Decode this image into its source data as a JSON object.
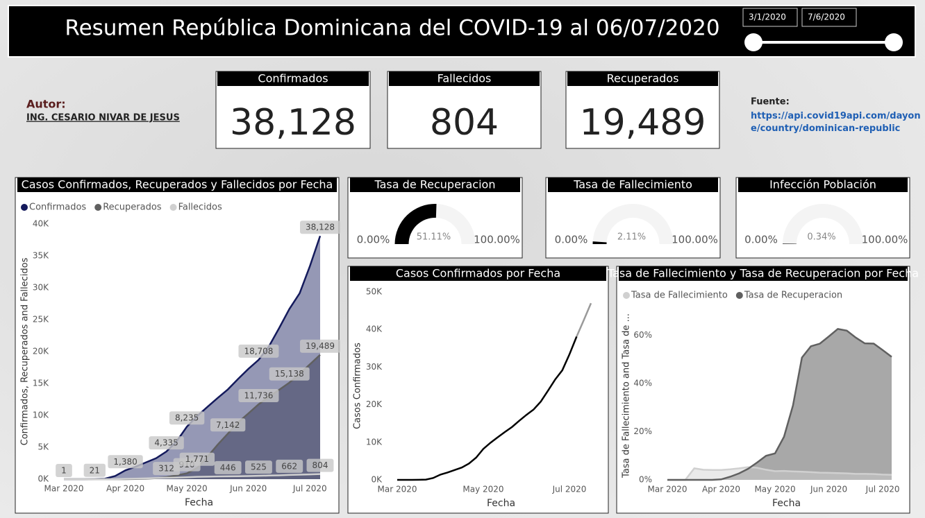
{
  "header": {
    "title": "Resumen República Dominicana del COVID-19 al 06/07/2020"
  },
  "slicer": {
    "start": "3/1/2020",
    "end": "7/6/2020"
  },
  "author": {
    "label": "Autor:",
    "name": "ING. CESARIO NIVAR DE JESUS"
  },
  "source": {
    "label": "Fuente:",
    "url": "https://api.covid19api.com/dayone/country/dominican-republic"
  },
  "cards": [
    {
      "title": "Confirmados",
      "value": "38,128"
    },
    {
      "title": "Fallecidos",
      "value": "804"
    },
    {
      "title": "Recuperados",
      "value": "19,489"
    }
  ],
  "chart_data": [
    {
      "type": "line",
      "title": "Casos Confirmados, Recuperados y Fallecidos por Fecha",
      "x_label": "Fecha",
      "y_label": "Confirmados, Recuperados and Fallecidos",
      "area": true,
      "categories": [
        "Mar 2020",
        null,
        null,
        null,
        null,
        null,
        "Apr 2020",
        null,
        null,
        null,
        null,
        null,
        "May 2020",
        null,
        null,
        null,
        null,
        null,
        "Jun 2020",
        null,
        null,
        null,
        null,
        null,
        "Jul 2020",
        null
      ],
      "ylim": [
        0,
        40000
      ],
      "yticks": [
        {
          "value": 0,
          "label": "0K"
        },
        {
          "value": 5000,
          "label": "5K"
        },
        {
          "value": 10000,
          "label": "10K"
        },
        {
          "value": 15000,
          "label": "15K"
        },
        {
          "value": 20000,
          "label": "20K"
        },
        {
          "value": 25000,
          "label": "25K"
        },
        {
          "value": 30000,
          "label": "30K"
        },
        {
          "value": 35000,
          "label": "35K"
        },
        {
          "value": 40000,
          "label": "40K"
        }
      ],
      "series": [
        {
          "name": "Confirmados",
          "color": "#141a5c",
          "values": [
            1,
            1,
            5,
            21,
            72,
            488,
            1380,
            1956,
            2620,
            3286,
            4335,
            5926,
            8235,
            9882,
            11320,
            12725,
            14072,
            15723,
            17285,
            18708,
            20808,
            23686,
            26677,
            29141,
            33387,
            38128
          ],
          "value_labels": [
            "1",
            null,
            null,
            "21",
            null,
            null,
            "1,380",
            null,
            null,
            null,
            "4,335",
            null,
            "8,235",
            null,
            null,
            null,
            null,
            null,
            null,
            "18,708",
            null,
            null,
            null,
            null,
            null,
            "38,128"
          ]
        },
        {
          "name": "Recuperados",
          "color": "#606060",
          "values": [
            0,
            0,
            0,
            0,
            0,
            0,
            3,
            25,
            70,
            150,
            312,
            600,
            910,
            1771,
            3500,
            5400,
            7142,
            8900,
            10300,
            11736,
            12900,
            14000,
            15138,
            16500,
            18000,
            19489
          ],
          "value_labels": [
            null,
            null,
            null,
            null,
            null,
            null,
            null,
            null,
            null,
            null,
            "312",
            null,
            "910",
            "1,771",
            null,
            null,
            "7,142",
            null,
            null,
            "11,736",
            null,
            null,
            "15,138",
            null,
            null,
            "19,489"
          ]
        },
        {
          "name": "Fallecidos",
          "color": "#d0d0d0",
          "values": [
            0,
            0,
            0,
            1,
            3,
            20,
            57,
            86,
            126,
            173,
            217,
            250,
            300,
            370,
            400,
            428,
            446,
            468,
            494,
            525,
            565,
            603,
            662,
            700,
            750,
            804
          ],
          "value_labels": [
            null,
            null,
            null,
            null,
            null,
            null,
            null,
            null,
            null,
            null,
            null,
            null,
            null,
            null,
            null,
            null,
            "446",
            null,
            null,
            "525",
            null,
            null,
            "662",
            null,
            null,
            "804"
          ]
        }
      ]
    },
    {
      "type": "gauge",
      "title": "Tasa de Recuperacion",
      "min": {
        "value": 0,
        "label": "0.00%"
      },
      "max": {
        "value": 100,
        "label": "100.00%"
      },
      "value": 51.11,
      "value_label": "51.11%"
    },
    {
      "type": "gauge",
      "title": "Tasa de Fallecimiento",
      "min": {
        "value": 0,
        "label": "0.00%"
      },
      "max": {
        "value": 100,
        "label": "100.00%"
      },
      "value": 2.11,
      "value_label": "2.11%"
    },
    {
      "type": "gauge",
      "title": "Infección Población",
      "min": {
        "value": 0,
        "label": "0.00%"
      },
      "max": {
        "value": 100,
        "label": "100.00%"
      },
      "value": 0.34,
      "value_label": "0.34%"
    },
    {
      "type": "line",
      "title": "Casos Confirmados por Fecha",
      "x_label": "Fecha",
      "y_label": "Casos Confirmados",
      "area": false,
      "categories": [
        "Mar 2020",
        null,
        null,
        null,
        null,
        null,
        null,
        null,
        null,
        null,
        null,
        null,
        "May 2020",
        null,
        null,
        null,
        null,
        null,
        null,
        null,
        null,
        null,
        null,
        null,
        "Jul 2020",
        null,
        null,
        null
      ],
      "ylim": [
        0,
        50000
      ],
      "yticks": [
        {
          "value": 0,
          "label": "0K"
        },
        {
          "value": 10000,
          "label": "10K"
        },
        {
          "value": 20000,
          "label": "20K"
        },
        {
          "value": 30000,
          "label": "30K"
        },
        {
          "value": 40000,
          "label": "40K"
        },
        {
          "value": 50000,
          "label": "50K"
        }
      ],
      "series": [
        {
          "color": "#000000",
          "values": [
            1,
            1,
            5,
            21,
            72,
            488,
            1380,
            1956,
            2620,
            3286,
            4335,
            5926,
            8235,
            9882,
            11320,
            12725,
            14072,
            15723,
            17285,
            18708,
            20808,
            23686,
            26677,
            29141,
            33387,
            38128,
            null,
            null
          ]
        },
        {
          "color": "#9a9a9a",
          "values": [
            null,
            null,
            null,
            null,
            null,
            null,
            null,
            null,
            null,
            null,
            null,
            null,
            null,
            null,
            null,
            null,
            null,
            null,
            null,
            null,
            null,
            null,
            null,
            null,
            null,
            38128,
            42500,
            47000
          ]
        }
      ]
    },
    {
      "type": "line",
      "title": "Tasa de Fallecimiento y Tasa de Recuperacion por Fecha",
      "x_label": "Fecha",
      "y_label": "Tasa de Fallecimiento and Tasa de ...",
      "area": true,
      "categories": [
        "Mar 2020",
        null,
        null,
        null,
        null,
        null,
        "Apr 2020",
        null,
        null,
        null,
        null,
        null,
        "May 2020",
        null,
        null,
        null,
        null,
        null,
        "Jun 2020",
        null,
        null,
        null,
        null,
        null,
        "Jul 2020",
        null
      ],
      "ylim": [
        0,
        70
      ],
      "yticks": [
        {
          "value": 0,
          "label": "0%"
        },
        {
          "value": 20,
          "label": "20%"
        },
        {
          "value": 40,
          "label": "40%"
        },
        {
          "value": 60,
          "label": "60%"
        }
      ],
      "series": [
        {
          "name": "Tasa de Fallecimiento",
          "color": "#d0d0d0",
          "values": [
            0,
            0,
            0,
            4.8,
            4.2,
            4.1,
            4.1,
            4.4,
            4.8,
            5.3,
            5.0,
            4.2,
            3.6,
            3.7,
            3.5,
            3.4,
            3.2,
            3.0,
            2.9,
            2.8,
            2.7,
            2.5,
            2.5,
            2.4,
            2.2,
            2.1
          ]
        },
        {
          "name": "Tasa de Recuperacion",
          "color": "#606060",
          "values": [
            0,
            0,
            0,
            0,
            0,
            0,
            0.2,
            1.3,
            2.7,
            4.6,
            7.2,
            10,
            11,
            17.9,
            30.9,
            50.8,
            55.5,
            56.6,
            59.6,
            62.7,
            62,
            59.1,
            56.7,
            56.6,
            53.9,
            51.1
          ]
        }
      ]
    }
  ]
}
